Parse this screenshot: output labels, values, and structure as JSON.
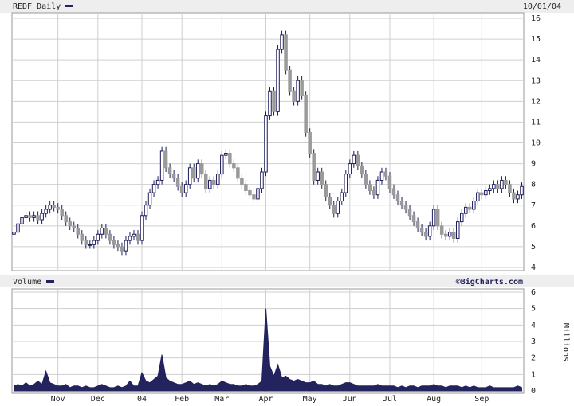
{
  "chart_data": [
    {
      "type": "candlestick",
      "title": "REDF Daily",
      "date": "10/01/04",
      "ylim": [
        4,
        16
      ],
      "yticks": [
        4,
        5,
        6,
        7,
        8,
        9,
        10,
        11,
        12,
        13,
        14,
        15,
        16
      ],
      "grid": true,
      "up_color": "#ffffff",
      "down_color": "#9a9a9a",
      "edge_color": "#1c1c5c",
      "open": [
        5.6,
        5.7,
        6.1,
        6.4,
        6.5,
        6.4,
        6.5,
        6.3,
        6.6,
        6.8,
        7.0,
        6.9,
        6.8,
        6.5,
        6.2,
        6.0,
        5.9,
        5.6,
        5.3,
        5.1,
        5.1,
        5.3,
        5.6,
        5.9,
        5.6,
        5.3,
        5.1,
        5.0,
        4.8,
        5.3,
        5.5,
        5.6,
        5.3,
        6.5,
        7.0,
        7.6,
        8.0,
        8.2,
        9.6,
        8.8,
        8.5,
        8.3,
        7.9,
        7.6,
        8.0,
        8.8,
        8.3,
        9.0,
        8.5,
        7.8,
        8.2,
        8.0,
        8.5,
        9.4,
        9.5,
        9.0,
        8.8,
        8.3,
        8.0,
        7.7,
        7.5,
        7.3,
        7.8,
        8.6,
        11.3,
        12.5,
        11.5,
        14.5,
        15.2,
        13.5,
        12.5,
        12.0,
        13.0,
        12.3,
        10.5,
        9.5,
        8.2,
        8.6,
        8.0,
        7.4,
        7.0,
        6.6,
        7.2,
        7.6,
        8.5,
        9.0,
        9.4,
        8.9,
        8.5,
        8.0,
        7.7,
        7.5,
        8.2,
        8.6,
        8.4,
        7.8,
        7.5,
        7.2,
        7.0,
        6.8,
        6.5,
        6.2,
        5.9,
        5.7,
        5.5,
        6.0,
        6.8,
        6.0,
        5.6,
        5.5,
        5.7,
        5.4,
        6.2,
        6.6,
        6.9,
        6.8,
        7.2,
        7.6,
        7.5,
        7.7,
        7.8,
        8.0,
        7.8,
        8.2,
        8.0,
        7.6,
        7.3,
        7.5
      ],
      "high": [
        5.9,
        6.3,
        6.6,
        6.7,
        6.7,
        6.7,
        6.7,
        6.8,
        7.0,
        7.2,
        7.2,
        7.1,
        7.0,
        6.7,
        6.4,
        6.2,
        6.1,
        5.8,
        5.5,
        5.3,
        5.5,
        5.8,
        6.1,
        6.1,
        5.8,
        5.5,
        5.3,
        5.2,
        5.5,
        5.7,
        5.8,
        5.8,
        6.7,
        7.2,
        7.8,
        8.2,
        8.4,
        9.8,
        9.8,
        9.0,
        8.7,
        8.5,
        8.1,
        8.2,
        9.0,
        9.0,
        9.2,
        9.2,
        8.7,
        8.4,
        8.4,
        8.7,
        9.6,
        9.7,
        9.7,
        9.2,
        9.0,
        8.5,
        8.2,
        7.9,
        7.7,
        8.0,
        8.8,
        11.5,
        12.7,
        12.7,
        14.7,
        15.4,
        15.4,
        13.7,
        12.7,
        13.2,
        13.2,
        12.5,
        10.7,
        9.7,
        8.8,
        8.8,
        8.2,
        7.6,
        7.2,
        7.4,
        7.8,
        8.7,
        9.2,
        9.6,
        9.6,
        9.1,
        8.7,
        8.2,
        7.9,
        8.4,
        8.8,
        8.8,
        8.6,
        8.0,
        7.7,
        7.4,
        7.2,
        7.0,
        6.7,
        6.4,
        6.1,
        5.9,
        6.2,
        7.0,
        7.0,
        6.2,
        5.8,
        5.9,
        5.9,
        6.4,
        6.8,
        7.1,
        7.1,
        7.4,
        7.8,
        7.8,
        7.9,
        8.0,
        8.2,
        8.2,
        8.4,
        8.4,
        8.2,
        7.8,
        7.7,
        8.1
      ],
      "low": [
        5.4,
        5.5,
        5.9,
        6.2,
        6.2,
        6.2,
        6.1,
        6.1,
        6.4,
        6.6,
        6.7,
        6.6,
        6.3,
        6.0,
        5.8,
        5.7,
        5.4,
        5.1,
        4.9,
        4.9,
        4.9,
        5.1,
        5.4,
        5.4,
        5.1,
        4.9,
        4.8,
        4.6,
        4.6,
        5.1,
        5.3,
        5.1,
        5.1,
        6.3,
        6.8,
        7.4,
        7.8,
        8.0,
        8.6,
        8.3,
        8.1,
        7.7,
        7.4,
        7.4,
        7.8,
        8.1,
        8.1,
        8.3,
        7.6,
        7.6,
        7.8,
        7.8,
        8.3,
        9.2,
        8.8,
        8.6,
        8.1,
        7.8,
        7.5,
        7.3,
        7.1,
        7.1,
        7.6,
        8.4,
        11.1,
        11.3,
        11.3,
        14.3,
        13.3,
        12.3,
        11.8,
        11.8,
        12.1,
        10.3,
        9.3,
        8.0,
        8.0,
        7.8,
        7.2,
        6.8,
        6.4,
        6.4,
        7.0,
        7.4,
        8.3,
        8.8,
        8.7,
        8.3,
        7.8,
        7.5,
        7.3,
        7.3,
        8.0,
        8.2,
        7.6,
        7.3,
        7.0,
        6.8,
        6.6,
        6.3,
        6.0,
        5.7,
        5.5,
        5.3,
        5.3,
        5.8,
        5.8,
        5.4,
        5.3,
        5.3,
        5.2,
        5.2,
        6.0,
        6.4,
        6.6,
        6.6,
        7.0,
        7.3,
        7.3,
        7.5,
        7.6,
        7.6,
        7.6,
        7.8,
        7.4,
        7.1,
        7.1,
        7.3
      ],
      "close": [
        5.7,
        6.1,
        6.4,
        6.5,
        6.4,
        6.5,
        6.3,
        6.6,
        6.8,
        7.0,
        6.9,
        6.8,
        6.5,
        6.2,
        6.0,
        5.9,
        5.6,
        5.3,
        5.1,
        5.1,
        5.3,
        5.6,
        5.9,
        5.6,
        5.3,
        5.1,
        5.0,
        4.8,
        5.3,
        5.5,
        5.6,
        5.3,
        6.5,
        7.0,
        7.6,
        8.0,
        8.2,
        9.6,
        8.8,
        8.5,
        8.3,
        7.9,
        7.6,
        8.0,
        8.8,
        8.3,
        9.0,
        8.5,
        7.8,
        8.2,
        8.0,
        8.5,
        9.4,
        9.5,
        9.0,
        8.8,
        8.3,
        8.0,
        7.7,
        7.5,
        7.3,
        7.8,
        8.6,
        11.3,
        12.5,
        11.5,
        14.5,
        15.2,
        13.5,
        12.5,
        12.0,
        13.0,
        12.3,
        10.5,
        9.5,
        8.2,
        8.6,
        8.0,
        7.4,
        7.0,
        6.6,
        7.2,
        7.6,
        8.5,
        9.0,
        9.4,
        8.9,
        8.5,
        8.0,
        7.7,
        7.5,
        8.2,
        8.6,
        8.4,
        7.8,
        7.5,
        7.2,
        7.0,
        6.8,
        6.5,
        6.2,
        5.9,
        5.7,
        5.5,
        6.0,
        6.8,
        6.0,
        5.6,
        5.5,
        5.7,
        5.4,
        6.2,
        6.6,
        6.9,
        6.8,
        7.2,
        7.6,
        7.5,
        7.7,
        7.8,
        8.0,
        7.8,
        8.2,
        8.0,
        7.6,
        7.3,
        7.5,
        7.9
      ]
    },
    {
      "type": "area",
      "title": "Volume",
      "source": "©BigCharts.com",
      "ylabel": "Millions",
      "ylim": [
        0,
        6
      ],
      "yticks": [
        0,
        1,
        2,
        3,
        4,
        5,
        6
      ],
      "grid": true,
      "color": "#23235e",
      "categories": [
        null,
        null,
        null,
        null,
        null,
        null,
        null,
        null,
        null,
        null,
        null,
        "Nov",
        null,
        null,
        null,
        null,
        null,
        null,
        null,
        null,
        null,
        "Dec",
        null,
        null,
        null,
        null,
        null,
        null,
        null,
        null,
        null,
        null,
        "04",
        null,
        null,
        null,
        null,
        null,
        null,
        null,
        null,
        null,
        "Feb",
        null,
        null,
        null,
        null,
        null,
        null,
        null,
        null,
        null,
        "Mar",
        null,
        null,
        null,
        null,
        null,
        null,
        null,
        null,
        null,
        null,
        "Apr",
        null,
        null,
        null,
        null,
        null,
        null,
        null,
        null,
        null,
        null,
        "May",
        null,
        null,
        null,
        null,
        null,
        null,
        null,
        null,
        null,
        "Jun",
        null,
        null,
        null,
        null,
        null,
        null,
        null,
        null,
        null,
        "Jul",
        null,
        null,
        null,
        null,
        null,
        null,
        null,
        null,
        null,
        null,
        "Aug",
        null,
        null,
        null,
        null,
        null,
        null,
        null,
        null,
        null,
        null,
        null,
        "Sep",
        null,
        null,
        null,
        null,
        null,
        null,
        null,
        null,
        null,
        null
      ],
      "values": [
        0.3,
        0.4,
        0.3,
        0.5,
        0.3,
        0.4,
        0.6,
        0.4,
        1.2,
        0.5,
        0.4,
        0.3,
        0.3,
        0.4,
        0.2,
        0.3,
        0.3,
        0.2,
        0.3,
        0.2,
        0.2,
        0.3,
        0.4,
        0.3,
        0.2,
        0.2,
        0.3,
        0.2,
        0.3,
        0.6,
        0.3,
        0.3,
        1.1,
        0.6,
        0.5,
        0.7,
        0.9,
        2.2,
        0.8,
        0.6,
        0.5,
        0.4,
        0.4,
        0.5,
        0.6,
        0.4,
        0.5,
        0.4,
        0.3,
        0.4,
        0.3,
        0.4,
        0.6,
        0.5,
        0.4,
        0.4,
        0.3,
        0.3,
        0.4,
        0.3,
        0.3,
        0.4,
        0.6,
        5.0,
        1.5,
        0.9,
        1.6,
        0.8,
        0.9,
        0.7,
        0.6,
        0.7,
        0.6,
        0.5,
        0.5,
        0.6,
        0.4,
        0.4,
        0.3,
        0.4,
        0.3,
        0.3,
        0.4,
        0.5,
        0.5,
        0.4,
        0.3,
        0.3,
        0.3,
        0.3,
        0.3,
        0.4,
        0.3,
        0.3,
        0.3,
        0.3,
        0.2,
        0.3,
        0.2,
        0.3,
        0.3,
        0.2,
        0.3,
        0.3,
        0.3,
        0.4,
        0.3,
        0.3,
        0.2,
        0.3,
        0.3,
        0.3,
        0.2,
        0.3,
        0.2,
        0.3,
        0.2,
        0.2,
        0.2,
        0.3,
        0.2,
        0.2,
        0.2,
        0.2,
        0.2,
        0.2,
        0.3,
        0.2
      ]
    }
  ]
}
